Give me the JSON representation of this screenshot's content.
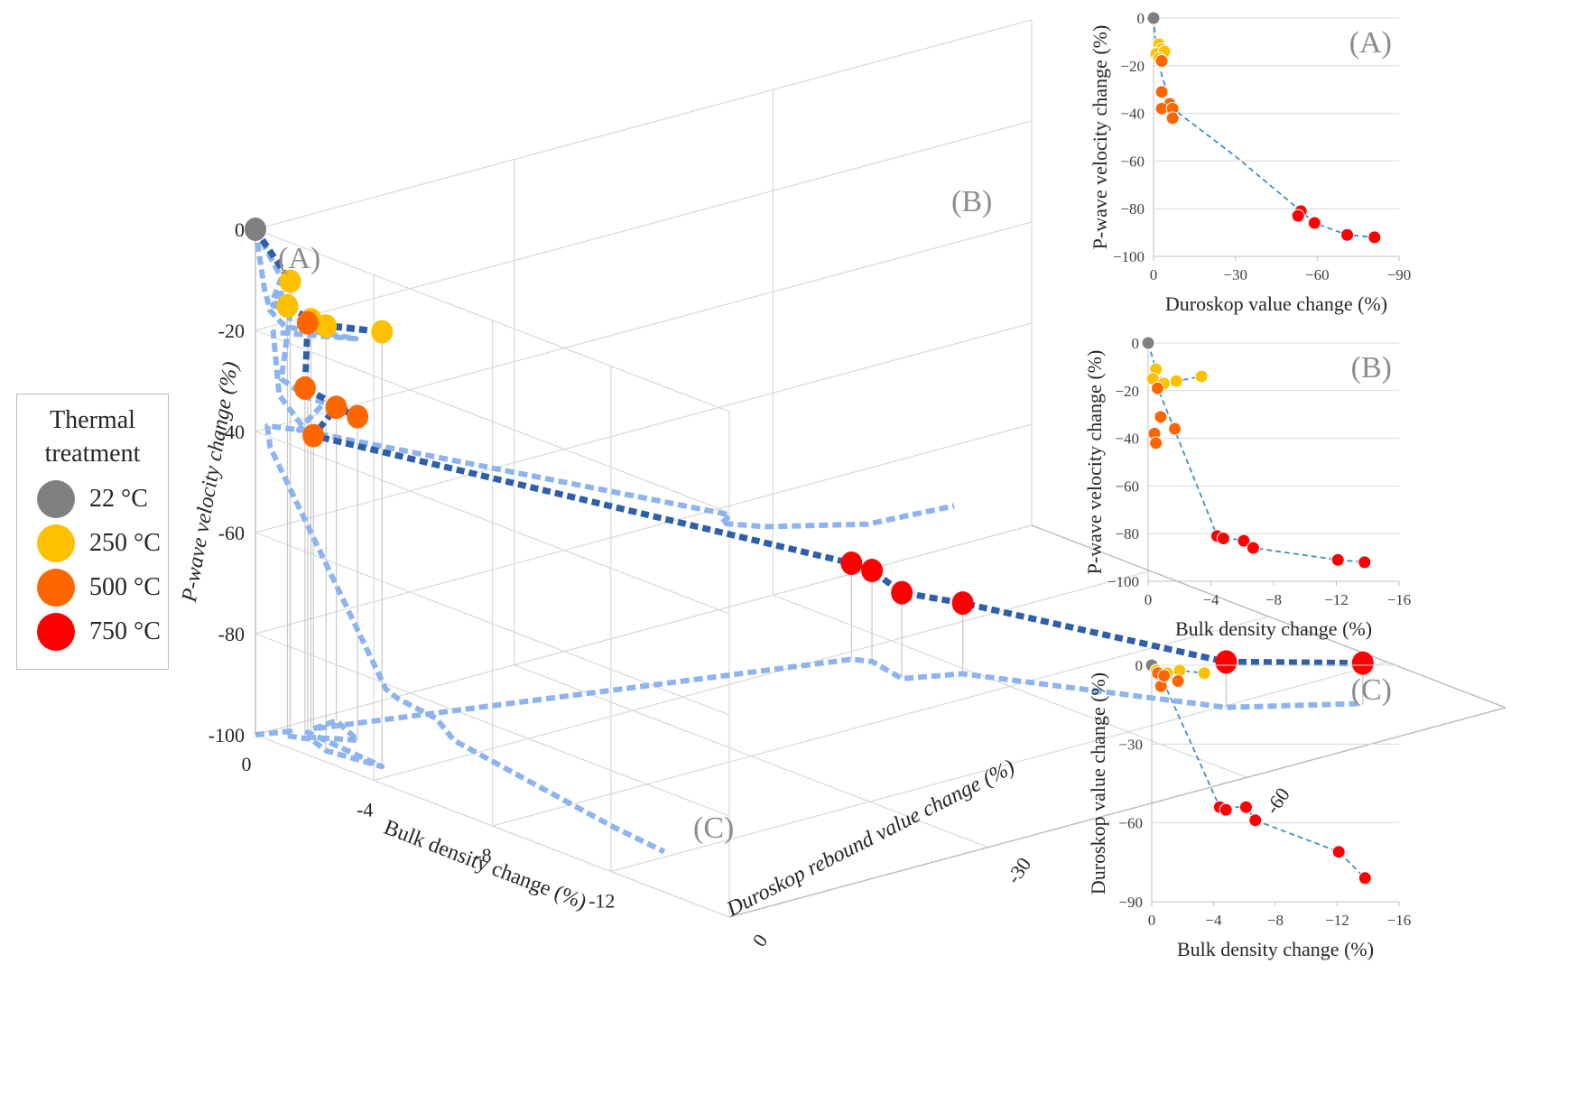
{
  "legend": {
    "title_line1": "Thermal",
    "title_line2": "treatment",
    "items": [
      {
        "label": "22 °C",
        "color": "#808080"
      },
      {
        "label": "250 °C",
        "color": "#FFC000"
      },
      {
        "label": "500 °C",
        "color": "#FF6600"
      },
      {
        "label": "750 °C",
        "color": "#FF0000"
      }
    ]
  },
  "chart_data": [
    {
      "type": "scatter3d",
      "title": "",
      "xlabel": "Bulk density change (%)",
      "ylabel": "Duroskop rebound value change (%)",
      "zlabel": "P-wave velocity change (%)",
      "x_ticks": [
        "0",
        "-4",
        "-8",
        "-12"
      ],
      "y_ticks": [
        "0",
        "-30",
        "-60"
      ],
      "z_ticks": [
        "0",
        "-20",
        "-40",
        "-60",
        "-80",
        "-100"
      ],
      "panel_labels": [
        "(A)",
        "(B)",
        "(C)"
      ],
      "series": [
        {
          "name": "22 °C",
          "color": "#808080",
          "points": [
            [
              0,
              0,
              0
            ]
          ]
        },
        {
          "name": "250 °C",
          "color": "#FFC000",
          "points": [
            [
              -0.3,
              -3,
              -11
            ],
            [
              -0.5,
              -2,
              -15
            ],
            [
              -1.0,
              -3,
              -17
            ],
            [
              -1.8,
              -2,
              -16
            ],
            [
              -3.4,
              -3,
              -14
            ]
          ]
        },
        {
          "name": "500 °C",
          "color": "#FF6600",
          "points": [
            [
              -0.6,
              -4,
              -19
            ],
            [
              -0.8,
              -3,
              -31
            ],
            [
              -1.7,
              -6,
              -36
            ],
            [
              -0.4,
              -8,
              -38
            ],
            [
              -0.5,
              -5,
              -42
            ]
          ]
        },
        {
          "name": "750 °C",
          "color": "#FF0000",
          "points": [
            [
              -4.4,
              -54,
              -81
            ],
            [
              -4.8,
              -55,
              -82
            ],
            [
              -6.1,
              -54,
              -83
            ],
            [
              -6.7,
              -59,
              -86
            ],
            [
              -12.1,
              -71,
              -91
            ],
            [
              -13.8,
              -81,
              -92
            ]
          ]
        }
      ]
    },
    {
      "type": "scatter",
      "panel": "(A)",
      "xlabel": "Duroskop value change (%)",
      "ylabel": "P-wave velocity change (%)",
      "x_ticks": [
        "0",
        "−30",
        "−60",
        "−90"
      ],
      "y_ticks": [
        "0",
        "−20",
        "−40",
        "−60",
        "−80",
        "−100"
      ],
      "xlim": [
        0,
        -90
      ],
      "ylim": [
        -100,
        0
      ],
      "series": [
        {
          "name": "22 °C",
          "color": "#808080",
          "x": [
            0
          ],
          "y": [
            0
          ]
        },
        {
          "name": "250 °C",
          "color": "#FFC000",
          "x": [
            -2,
            -3,
            -1,
            -4,
            -2
          ],
          "y": [
            -11,
            -13,
            -15,
            -14,
            -17
          ]
        },
        {
          "name": "500 °C",
          "color": "#FF6600",
          "x": [
            -3,
            -3,
            -6,
            -3,
            -7,
            -7
          ],
          "y": [
            -18,
            -31,
            -36,
            -38,
            -38,
            -42
          ]
        },
        {
          "name": "750 °C",
          "color": "#FF0000",
          "x": [
            -54,
            -53,
            -59,
            -71,
            -81
          ],
          "y": [
            -81,
            -83,
            -86,
            -91,
            -92
          ]
        }
      ],
      "trend_x": [
        0,
        -1,
        -3,
        -7,
        -30,
        -54,
        -59,
        -71,
        -81
      ],
      "trend_y": [
        0,
        -12,
        -24,
        -38,
        -58,
        -81,
        -86,
        -91,
        -92
      ]
    },
    {
      "type": "scatter",
      "panel": "(B)",
      "xlabel": "Bulk density change (%)",
      "ylabel": "P-wave velocity change (%)",
      "x_ticks": [
        "0",
        "−4",
        "−8",
        "−12",
        "−16"
      ],
      "y_ticks": [
        "0",
        "−20",
        "−40",
        "−60",
        "−80",
        "−100"
      ],
      "xlim": [
        0,
        -16
      ],
      "ylim": [
        -100,
        0
      ],
      "series": [
        {
          "name": "22 °C",
          "color": "#808080",
          "x": [
            0
          ],
          "y": [
            0
          ]
        },
        {
          "name": "250 °C",
          "color": "#FFC000",
          "x": [
            -0.5,
            -0.3,
            -1.0,
            -1.8,
            -3.4
          ],
          "y": [
            -11,
            -15,
            -17,
            -16,
            -14
          ]
        },
        {
          "name": "500 °C",
          "color": "#FF6600",
          "x": [
            -0.6,
            -0.8,
            -1.7,
            -0.4,
            -0.5
          ],
          "y": [
            -19,
            -31,
            -36,
            -38,
            -42
          ]
        },
        {
          "name": "750 °C",
          "color": "#FF0000",
          "x": [
            -4.4,
            -4.8,
            -6.1,
            -6.7,
            -12.1,
            -13.8
          ],
          "y": [
            -81,
            -82,
            -83,
            -86,
            -91,
            -92
          ]
        }
      ],
      "trend_x": [
        0,
        -0.5,
        -1.0,
        -1.8,
        -3.4
      ],
      "trend_y": [
        0,
        -11,
        -17,
        -16,
        -14
      ],
      "trend2_x": [
        -0.5,
        -4.4,
        -6.1,
        -6.7,
        -12.1,
        -13.8
      ],
      "trend2_y": [
        -17,
        -81,
        -83,
        -86,
        -91,
        -92
      ]
    },
    {
      "type": "scatter",
      "panel": "(C)",
      "xlabel": "Bulk density change (%)",
      "ylabel": "Duroskop value change (%)",
      "x_ticks": [
        "0",
        "−4",
        "−8",
        "−12",
        "−16"
      ],
      "y_ticks": [
        "0",
        "−30",
        "−60",
        "−90"
      ],
      "xlim": [
        0,
        -16
      ],
      "ylim": [
        -90,
        0
      ],
      "series": [
        {
          "name": "22 °C",
          "color": "#808080",
          "x": [
            0
          ],
          "y": [
            0
          ]
        },
        {
          "name": "250 °C",
          "color": "#FFC000",
          "x": [
            -0.3,
            -0.6,
            -1.0,
            -1.8,
            -3.4
          ],
          "y": [
            -2,
            -3,
            -3,
            -2,
            -3
          ]
        },
        {
          "name": "500 °C",
          "color": "#FF6600",
          "x": [
            -0.4,
            -0.6,
            -0.8,
            -1.7
          ],
          "y": [
            -3,
            -8,
            -4,
            -6
          ]
        },
        {
          "name": "750 °C",
          "color": "#FF0000",
          "x": [
            -4.4,
            -4.8,
            -6.1,
            -6.7,
            -12.1,
            -13.8
          ],
          "y": [
            -54,
            -55,
            -54,
            -59,
            -71,
            -81
          ]
        }
      ],
      "trend_x": [
        0,
        -0.5,
        -1.0,
        -1.8,
        -3.4
      ],
      "trend_y": [
        0,
        -3,
        -3,
        -2,
        -3
      ],
      "trend2_x": [
        -0.5,
        -4.4,
        -6.1,
        -6.7,
        -12.1,
        -13.8
      ],
      "trend2_y": [
        -3,
        -54,
        -54,
        -59,
        -71,
        -81
      ]
    }
  ]
}
